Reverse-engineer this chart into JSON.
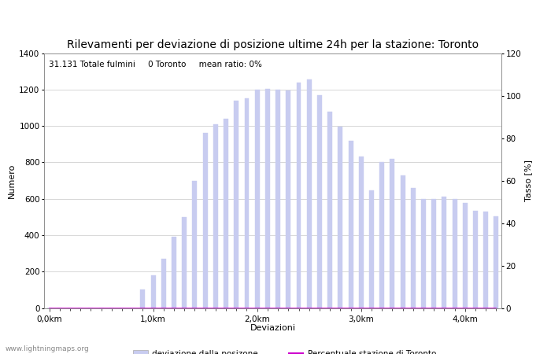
{
  "title": "Rilevamenti per deviazione di posizione ultime 24h per la stazione: Toronto",
  "subtitle": "31.131 Totale fulmini     0 Toronto     mean ratio: 0%",
  "xlabel": "Deviazioni",
  "ylabel_left": "Numero",
  "ylabel_right": "Tasso [%]",
  "watermark": "www.lightningmaps.org",
  "bar_values": [
    0,
    0,
    0,
    0,
    0,
    0,
    0,
    0,
    0,
    100,
    180,
    270,
    390,
    500,
    700,
    960,
    1010,
    1040,
    1140,
    1150,
    1200,
    1205,
    1200,
    1195,
    1240,
    1255,
    1170,
    1080,
    995,
    920,
    830,
    645,
    800,
    820,
    730,
    660,
    600,
    600,
    610,
    600,
    575,
    535,
    530,
    505
  ],
  "toronto_values": [
    0,
    0,
    0,
    0,
    0,
    0,
    0,
    0,
    0,
    0,
    0,
    0,
    0,
    0,
    0,
    0,
    0,
    0,
    0,
    0,
    0,
    0,
    0,
    0,
    0,
    0,
    0,
    0,
    0,
    0,
    0,
    0,
    0,
    0,
    0,
    0,
    0,
    0,
    0,
    0,
    0,
    0,
    0,
    0
  ],
  "ratio_values": [
    0,
    0,
    0,
    0,
    0,
    0,
    0,
    0,
    0,
    0,
    0,
    0,
    0,
    0,
    0,
    0,
    0,
    0,
    0,
    0,
    0,
    0,
    0,
    0,
    0,
    0,
    0,
    0,
    0,
    0,
    0,
    0,
    0,
    0,
    0,
    0,
    0,
    0,
    0,
    0,
    0,
    0,
    0,
    0
  ],
  "n_bars": 44,
  "xtick_positions": [
    0,
    10,
    20,
    30,
    40
  ],
  "xtick_labels": [
    "0,0km",
    "1,0km",
    "2,0km",
    "3,0km",
    "4,0km"
  ],
  "ylim_left": [
    0,
    1400
  ],
  "ylim_right": [
    0,
    120
  ],
  "yticks_left": [
    0,
    200,
    400,
    600,
    800,
    1000,
    1200,
    1400
  ],
  "yticks_right": [
    0,
    20,
    40,
    60,
    80,
    100,
    120
  ],
  "bar_color_main": "#c8ccf0",
  "bar_color_toronto": "#5060c8",
  "line_color_ratio": "#cc00cc",
  "bg_color": "#ffffff",
  "grid_color": "#c8c8c8",
  "title_fontsize": 10,
  "subtitle_fontsize": 7.5,
  "axis_fontsize": 8,
  "tick_fontsize": 7.5,
  "legend_fontsize": 7.5
}
